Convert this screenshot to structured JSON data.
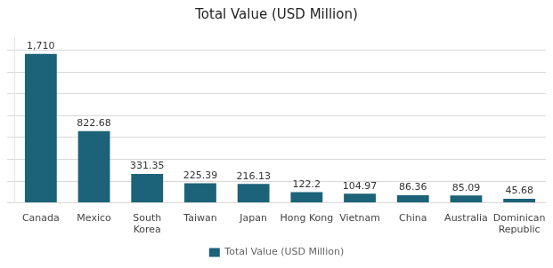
{
  "chart_data": {
    "type": "bar",
    "title": "Total Value (USD Million)",
    "categories": [
      "Canada",
      "Mexico",
      "South\nKorea",
      "Taiwan",
      "Japan",
      "Hong Kong",
      "Vietnam",
      "China",
      "Australia",
      "Dominican\nRepublic"
    ],
    "series": [
      {
        "name": "Total Value (USD Million)",
        "color": "#1c6278",
        "values": [
          1710,
          822.68,
          331.35,
          225.39,
          216.13,
          122.2,
          104.97,
          86.36,
          85.09,
          45.68
        ],
        "value_labels": [
          "1,710",
          "822.68",
          "331.35",
          "225.39",
          "216.13",
          "122.2",
          "104.97",
          "86.36",
          "85.09",
          "45.68"
        ]
      }
    ],
    "ylim": [
      0,
      1900
    ],
    "yticks": [
      0,
      250,
      500,
      750,
      1000,
      1250,
      1500,
      1750
    ],
    "grid": true,
    "legend": "bottom",
    "data_labels": true,
    "tick_labels": "x"
  }
}
